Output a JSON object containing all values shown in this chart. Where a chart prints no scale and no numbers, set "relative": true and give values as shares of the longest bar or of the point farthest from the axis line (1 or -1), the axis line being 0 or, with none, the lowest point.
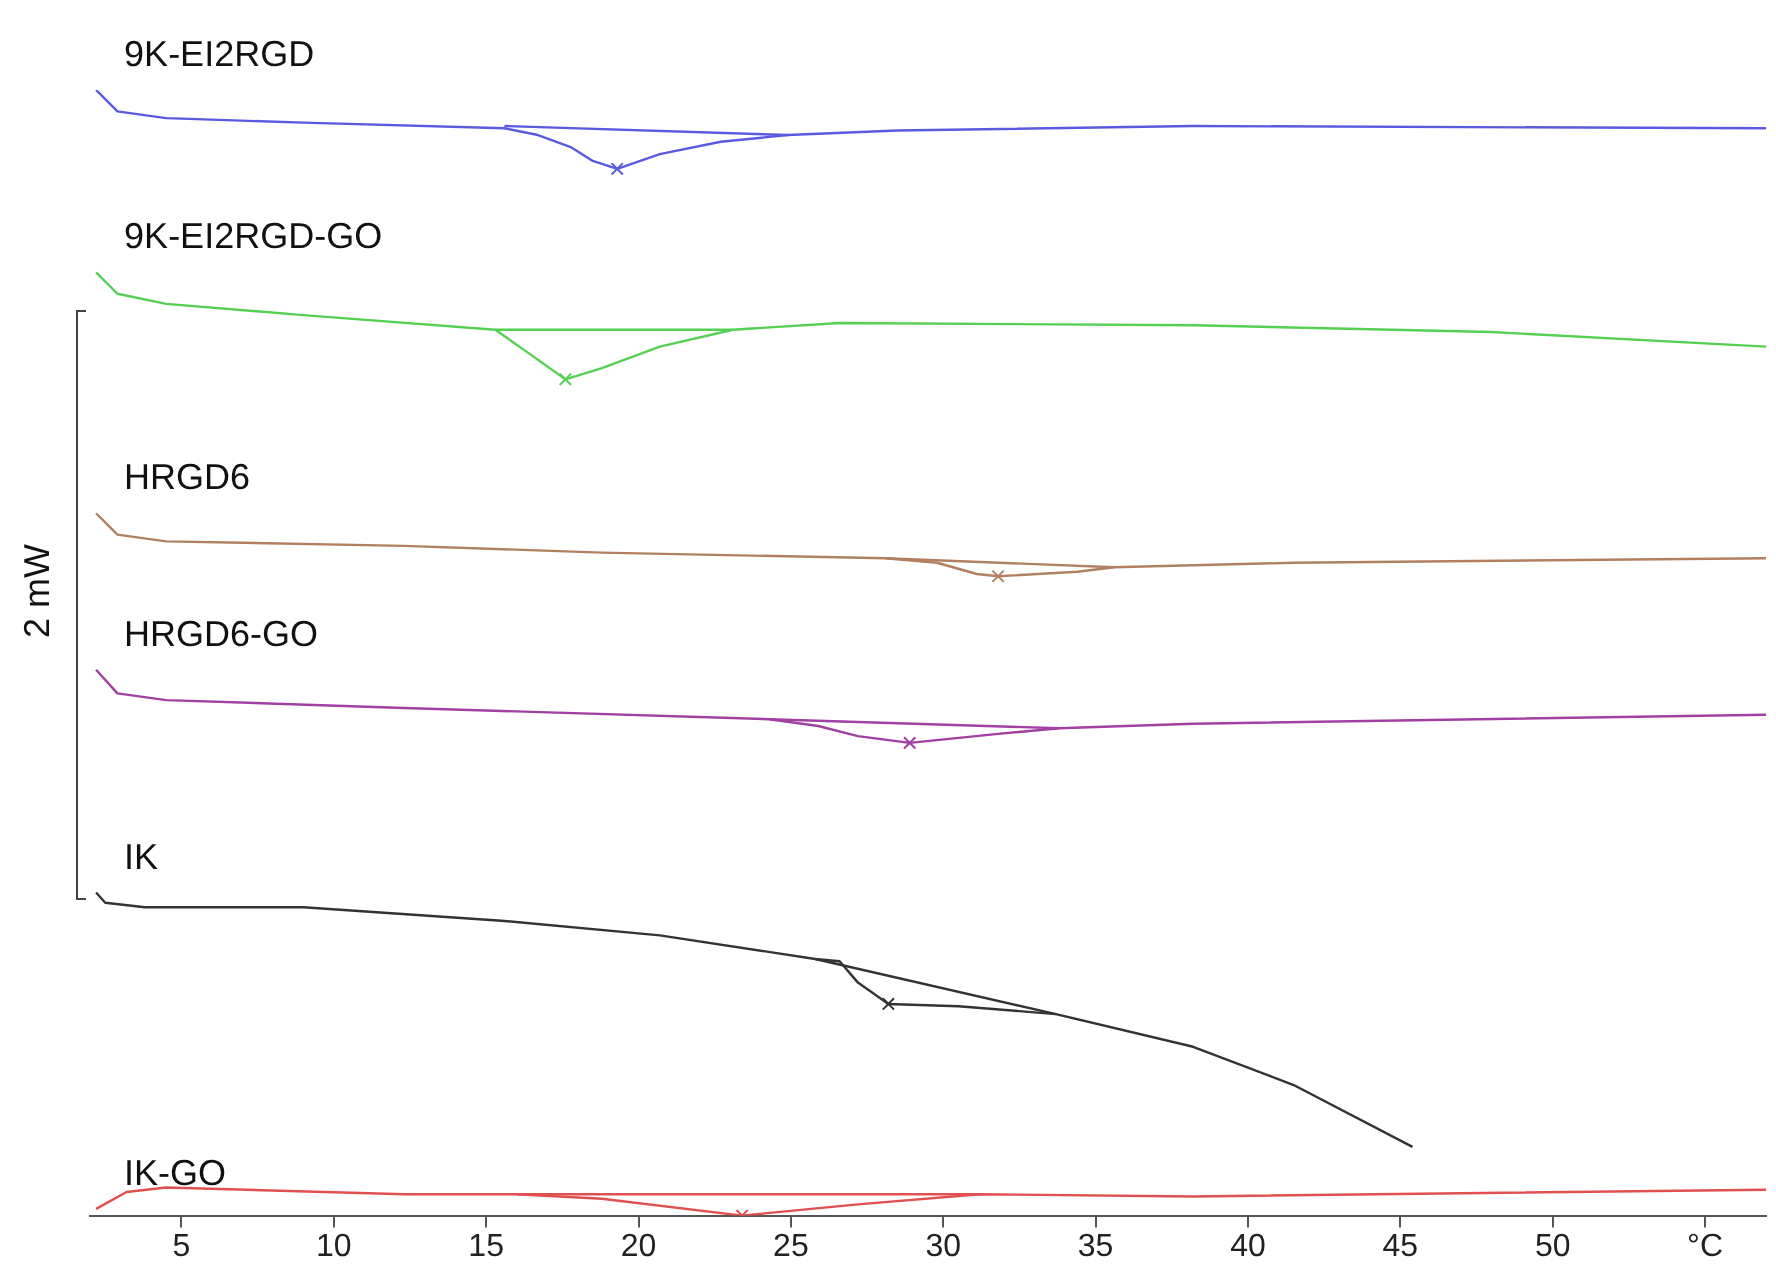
{
  "chart_data": {
    "type": "line",
    "relative": true,
    "ylabel": "2 mW",
    "xlim": [
      2,
      57
    ],
    "xticks": [
      5,
      10,
      15,
      20,
      25,
      30,
      35,
      40,
      45,
      50,
      {
        "value": 55,
        "label": "°C"
      }
    ],
    "grid": false,
    "legend": false,
    "marker": "none",
    "line_style": "solid",
    "series": [
      {
        "name": "9K-EI2RGD",
        "type": "line",
        "color": "#5a5ae0",
        "x": [
          2.2,
          2.9,
          4.5,
          9.0,
          15.6,
          16.7,
          17.8,
          18.5,
          19.3,
          20.7,
          22.7,
          24.9,
          28.5,
          38.2,
          57.0
        ],
        "values": [
          1.0,
          0.981,
          0.975,
          0.971,
          0.966,
          0.96,
          0.949,
          0.937,
          0.93,
          0.943,
          0.954,
          0.96,
          0.964,
          0.968,
          0.966
        ]
      },
      {
        "type": "line",
        "color": "#5a5ae0",
        "x": [
          15.6,
          24.9
        ],
        "values": [
          0.968,
          0.96
        ]
      },
      {
        "type": "scatter",
        "marker": "cross",
        "color": "#5a5ae0",
        "x": [
          19.3
        ],
        "values": [
          0.93
        ]
      },
      {
        "name": "9K-EI2RGD-GO",
        "type": "line",
        "color": "#55d055",
        "x": [
          2.2,
          2.9,
          4.5,
          9.0,
          15.3,
          16.3,
          17.6,
          18.8,
          20.7,
          23.1,
          26.6,
          38.2,
          48.0,
          57.0
        ],
        "values": [
          0.838,
          0.819,
          0.81,
          0.8,
          0.787,
          0.768,
          0.743,
          0.753,
          0.772,
          0.787,
          0.793,
          0.791,
          0.785,
          0.772
        ]
      },
      {
        "type": "line",
        "color": "#55d055",
        "x": [
          15.3,
          23.1
        ],
        "values": [
          0.787,
          0.787
        ]
      },
      {
        "type": "scatter",
        "marker": "cross",
        "color": "#55d055",
        "x": [
          17.6
        ],
        "values": [
          0.743
        ]
      },
      {
        "name": "HRGD6",
        "type": "line",
        "color": "#b08060",
        "x": [
          2.2,
          2.9,
          4.5,
          12.3,
          18.8,
          28.1,
          29.8,
          31.1,
          31.8,
          34.4,
          35.6,
          41.5,
          57.0
        ],
        "values": [
          0.624,
          0.605,
          0.599,
          0.595,
          0.589,
          0.584,
          0.58,
          0.57,
          0.568,
          0.572,
          0.576,
          0.58,
          0.584
        ]
      },
      {
        "type": "line",
        "color": "#b08060",
        "x": [
          28.1,
          35.6
        ],
        "values": [
          0.584,
          0.576
        ]
      },
      {
        "type": "scatter",
        "marker": "cross",
        "color": "#b08060",
        "x": [
          31.8
        ],
        "values": [
          0.568
        ]
      },
      {
        "name": "HRGD6-GO",
        "type": "line",
        "color": "#a040a0",
        "x": [
          2.2,
          2.9,
          4.5,
          12.3,
          24.3,
          25.9,
          27.2,
          28.9,
          31.8,
          33.8,
          38.2,
          57.0
        ],
        "values": [
          0.485,
          0.464,
          0.458,
          0.451,
          0.441,
          0.435,
          0.426,
          0.42,
          0.428,
          0.433,
          0.437,
          0.445
        ]
      },
      {
        "type": "line",
        "color": "#a040a0",
        "x": [
          24.3,
          33.8
        ],
        "values": [
          0.441,
          0.433
        ]
      },
      {
        "type": "scatter",
        "marker": "cross",
        "color": "#a040a0",
        "x": [
          28.9
        ],
        "values": [
          0.42
        ]
      },
      {
        "name": "IK",
        "type": "line",
        "color": "#333333",
        "x": [
          2.2,
          2.5,
          3.8,
          9.0,
          15.5,
          20.7,
          25.8,
          26.6,
          27.2,
          28.2,
          30.5,
          33.7,
          38.2,
          41.5,
          45.4
        ],
        "values": [
          0.287,
          0.278,
          0.274,
          0.274,
          0.262,
          0.249,
          0.228,
          0.226,
          0.207,
          0.188,
          0.186,
          0.179,
          0.15,
          0.116,
          0.061
        ]
      },
      {
        "type": "line",
        "color": "#333333",
        "x": [
          25.8,
          33.7
        ],
        "values": [
          0.228,
          0.179
        ]
      },
      {
        "type": "scatter",
        "marker": "cross",
        "color": "#333333",
        "x": [
          28.2
        ],
        "values": [
          0.188
        ]
      },
      {
        "name": "IK-GO",
        "type": "line",
        "color": "#e05050",
        "x": [
          2.2,
          3.2,
          4.5,
          12.3,
          16.0,
          18.8,
          23.4,
          27.2,
          31.2,
          38.2,
          57.0
        ],
        "values": [
          0.006,
          0.021,
          0.025,
          0.019,
          0.019,
          0.015,
          0.0,
          0.01,
          0.019,
          0.017,
          0.023
        ]
      },
      {
        "type": "line",
        "color": "#e05050",
        "x": [
          16.0,
          31.2
        ],
        "values": [
          0.019,
          0.019
        ]
      },
      {
        "type": "scatter",
        "marker": "cross",
        "color": "#e05050",
        "x": [
          23.4
        ],
        "values": [
          0.0
        ]
      }
    ]
  }
}
